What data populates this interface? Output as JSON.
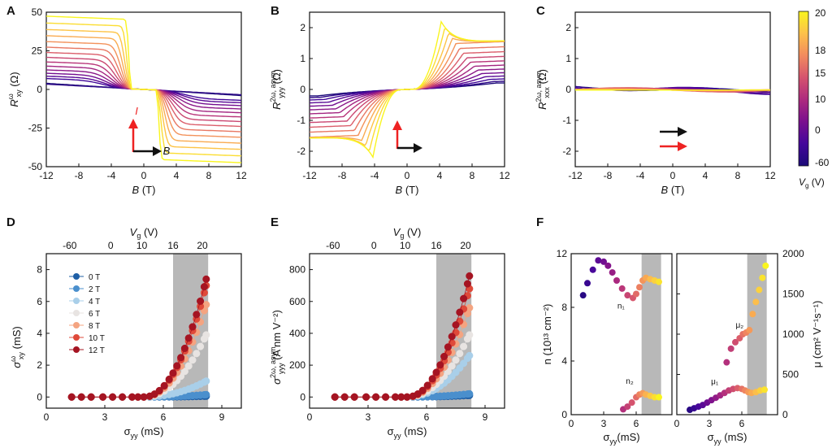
{
  "chart_data": [
    {
      "panel": "A",
      "type": "line",
      "xlabel": "B (T)",
      "ylabel": {
        "base": "R",
        "sup": "ω",
        "sub": "xy",
        "unit": " (Ω)"
      },
      "xlim": [
        -12,
        12
      ],
      "ylim": [
        -50,
        50
      ],
      "xticks": [
        -12,
        -8,
        -4,
        0,
        4,
        8,
        12
      ],
      "yticks": [
        50,
        25,
        0,
        -25,
        -50
      ],
      "family": {
        "count": 16,
        "model": "odd",
        "amplitude_range": [
          3,
          45
        ],
        "knee_range": [
          0.5,
          5.5
        ],
        "lowV_slope": -0.33
      },
      "inset": {
        "current_label": "I",
        "field_label": "B"
      }
    },
    {
      "panel": "B",
      "type": "line",
      "xlabel": "B (T)",
      "ylabel": {
        "base": "R",
        "sup": "2ω, asym",
        "sub": "yyy",
        "unit": " (Ω)"
      },
      "xlim": [
        -12,
        12
      ],
      "ylim": [
        -2.5,
        2.5
      ],
      "xticks": [
        -12,
        -8,
        -4,
        0,
        4,
        8,
        12
      ],
      "yticks": [
        2,
        1,
        0,
        -1,
        -2
      ],
      "family": {
        "count": 16,
        "peak_range": [
          0.1,
          2.15
        ],
        "peakB_range": [
          11,
          4.2
        ],
        "tail_at_12T": 1.45
      }
    },
    {
      "panel": "C",
      "type": "line",
      "xlabel": "B (T)",
      "ylabel": {
        "base": "R",
        "sup": "2ω, asym",
        "sub": "xxx",
        "unit": " (Ω)"
      },
      "xlim": [
        -12,
        12
      ],
      "ylim": [
        -2.5,
        2.5
      ],
      "xticks": [
        -12,
        -8,
        -4,
        0,
        4,
        8,
        12
      ],
      "yticks": [
        2,
        1,
        0,
        -1,
        -2
      ],
      "family": {
        "count": 14,
        "amplitude_max": 0.18
      }
    },
    {
      "panel": "colorbar",
      "type": "heatmap",
      "label": "Vg (V)",
      "ticks": [
        20,
        18,
        15,
        10,
        0,
        -60
      ],
      "colors": [
        "#f9f51f",
        "#fdc14a",
        "#f28b5e",
        "#d5536e",
        "#ad2a7e",
        "#7a0f8e",
        "#44079b",
        "#1b0a78"
      ]
    },
    {
      "panel": "D",
      "type": "scatter",
      "xlabel": "σyy (mS)",
      "ylabel": {
        "base": "σ",
        "sup": "ω",
        "sub": "xy",
        "unit": "  (mS)"
      },
      "toplabel": "Vg (V)",
      "xlim": [
        0,
        10
      ],
      "ylim": [
        -0.7,
        9
      ],
      "xticks": [
        0,
        3,
        6,
        9
      ],
      "yticks": [
        0,
        2,
        4,
        6,
        8
      ],
      "topticks": [
        {
          "pos": 1.2,
          "label": "-60"
        },
        {
          "pos": 3.3,
          "label": "0"
        },
        {
          "pos": 4.9,
          "label": "10"
        },
        {
          "pos": 6.5,
          "label": "16"
        },
        {
          "pos": 8.0,
          "label": "20"
        }
      ],
      "shade": [
        6.5,
        8.3
      ],
      "x": [
        1.3,
        1.8,
        2.3,
        2.9,
        3.4,
        3.9,
        4.4,
        4.7,
        5.0,
        5.3,
        5.55,
        5.8,
        6.05,
        6.3,
        6.5,
        6.7,
        6.9,
        7.1,
        7.3,
        7.5,
        7.7,
        7.9,
        8.1,
        8.2
      ],
      "series": [
        {
          "name": "0 T",
          "color": "#1f5fa6",
          "peak": 0.05
        },
        {
          "name": "2 T",
          "color": "#4a8fcd",
          "peak": 0.15
        },
        {
          "name": "4 T",
          "color": "#a9cfe9",
          "peak": 1.0
        },
        {
          "name": "6 T",
          "color": "#e8e4e2",
          "peak": 3.9
        },
        {
          "name": "8 T",
          "color": "#f4a481",
          "peak": 5.8
        },
        {
          "name": "10 T",
          "color": "#df4a3a",
          "peak": 7.0
        },
        {
          "name": "12 T",
          "color": "#a51422",
          "peak": 7.4
        }
      ]
    },
    {
      "panel": "E",
      "type": "scatter",
      "xlabel": "σyy (mS)",
      "ylabel": {
        "base": "σ",
        "sup": "2ω, asym",
        "sub": "yyy",
        "unit": "  (A nm V⁻²)"
      },
      "toplabel": "Vg (V)",
      "xlim": [
        0,
        10
      ],
      "ylim": [
        -70,
        900
      ],
      "xticks": [
        0,
        3,
        6,
        9
      ],
      "yticks": [
        0,
        200,
        400,
        600,
        800
      ],
      "topticks": [
        {
          "pos": 1.2,
          "label": "-60"
        },
        {
          "pos": 3.3,
          "label": "0"
        },
        {
          "pos": 4.9,
          "label": "10"
        },
        {
          "pos": 6.5,
          "label": "16"
        },
        {
          "pos": 8.0,
          "label": "20"
        }
      ],
      "shade": [
        6.5,
        8.3
      ],
      "series_peaks": [
        10,
        20,
        260,
        390,
        560,
        680,
        760
      ]
    },
    {
      "panel": "F-left",
      "type": "scatter",
      "xlabel": "σyy(mS)",
      "ylabel": "n (10¹³ cm⁻²)",
      "xlim": [
        0,
        9.3
      ],
      "ylim": [
        0,
        12
      ],
      "xticks": [
        0,
        3,
        6
      ],
      "yticks": [
        0,
        4,
        8,
        12
      ],
      "shade": [
        6.5,
        8.3
      ],
      "n1": {
        "label": "n₁",
        "x": [
          1.1,
          1.5,
          2.0,
          2.5,
          3.0,
          3.4,
          3.8,
          4.2,
          4.7,
          5.2,
          5.7,
          6.0,
          6.3,
          6.6,
          6.9,
          7.3,
          7.7,
          8.1
        ],
        "y": [
          8.9,
          9.8,
          10.8,
          11.5,
          11.4,
          11.1,
          10.6,
          10.0,
          9.4,
          8.9,
          8.7,
          9.0,
          9.5,
          10.0,
          10.2,
          10.1,
          10.0,
          9.9
        ]
      },
      "n2": {
        "label": "n₂",
        "x": [
          4.8,
          5.2,
          5.6,
          6.0,
          6.3,
          6.6,
          6.9,
          7.3,
          7.7,
          8.1
        ],
        "y": [
          0.4,
          0.6,
          0.9,
          1.3,
          1.5,
          1.6,
          1.5,
          1.4,
          1.3,
          1.3
        ]
      }
    },
    {
      "panel": "F-right",
      "type": "scatter",
      "xlabel": "σyy (mS)",
      "ylabel": "μ (cm² V⁻¹s⁻¹)",
      "xlim": [
        0,
        9.3
      ],
      "ylim": [
        0,
        2000
      ],
      "xticks": [
        0,
        3,
        6
      ],
      "yticks": [
        0,
        500,
        1000,
        1500,
        2000
      ],
      "shade": [
        6.5,
        8.3
      ],
      "mu1": {
        "label": "μ₁",
        "x": [
          1.2,
          1.6,
          2.0,
          2.4,
          2.8,
          3.2,
          3.6,
          4.0,
          4.4,
          4.8,
          5.2,
          5.6,
          6.0,
          6.3,
          6.6,
          6.9,
          7.3,
          7.7,
          8.1
        ],
        "y": [
          60,
          80,
          100,
          120,
          150,
          180,
          210,
          240,
          270,
          300,
          320,
          330,
          320,
          300,
          280,
          270,
          280,
          300,
          310
        ]
      },
      "mu2": {
        "label": "μ₂",
        "x": [
          4.6,
          5.0,
          5.4,
          5.8,
          6.1,
          6.4,
          6.7,
          7.0,
          7.3,
          7.6,
          7.9,
          8.2
        ],
        "y": [
          650,
          820,
          900,
          950,
          1000,
          1020,
          1050,
          1250,
          1400,
          1550,
          1700,
          1850
        ]
      }
    }
  ]
}
